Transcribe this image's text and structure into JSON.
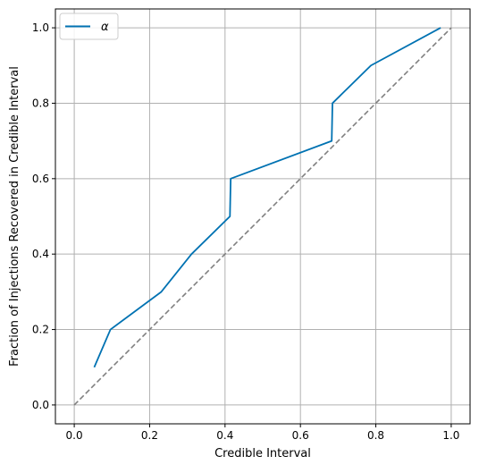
{
  "chart_data": {
    "type": "line",
    "title": "",
    "xlabel": "Credible Interval",
    "ylabel": "Fraction of Injections Recovered in Credible Interval",
    "xlim": [
      -0.05,
      1.05
    ],
    "ylim": [
      -0.05,
      1.05
    ],
    "xticks": [
      0.0,
      0.2,
      0.4,
      0.6,
      0.8,
      1.0
    ],
    "yticks": [
      0.0,
      0.2,
      0.4,
      0.6,
      0.8,
      1.0
    ],
    "xtick_labels": [
      "0.0",
      "0.2",
      "0.4",
      "0.6",
      "0.8",
      "1.0"
    ],
    "ytick_labels": [
      "0.0",
      "0.2",
      "0.4",
      "0.6",
      "0.8",
      "1.0"
    ],
    "grid": true,
    "legend_position": "top-left",
    "series": [
      {
        "name": "α",
        "color": "#0072b2",
        "style": "solid",
        "x": [
          0.053,
          0.096,
          0.231,
          0.311,
          0.413,
          0.415,
          0.683,
          0.685,
          0.787,
          0.972
        ],
        "y": [
          0.1,
          0.2,
          0.3,
          0.4,
          0.5,
          0.6,
          0.7,
          0.8,
          0.9,
          1.0
        ]
      },
      {
        "name": "",
        "color": "#808080",
        "style": "dashed",
        "x": [
          0.0,
          1.0
        ],
        "y": [
          0.0,
          1.0
        ]
      }
    ]
  }
}
